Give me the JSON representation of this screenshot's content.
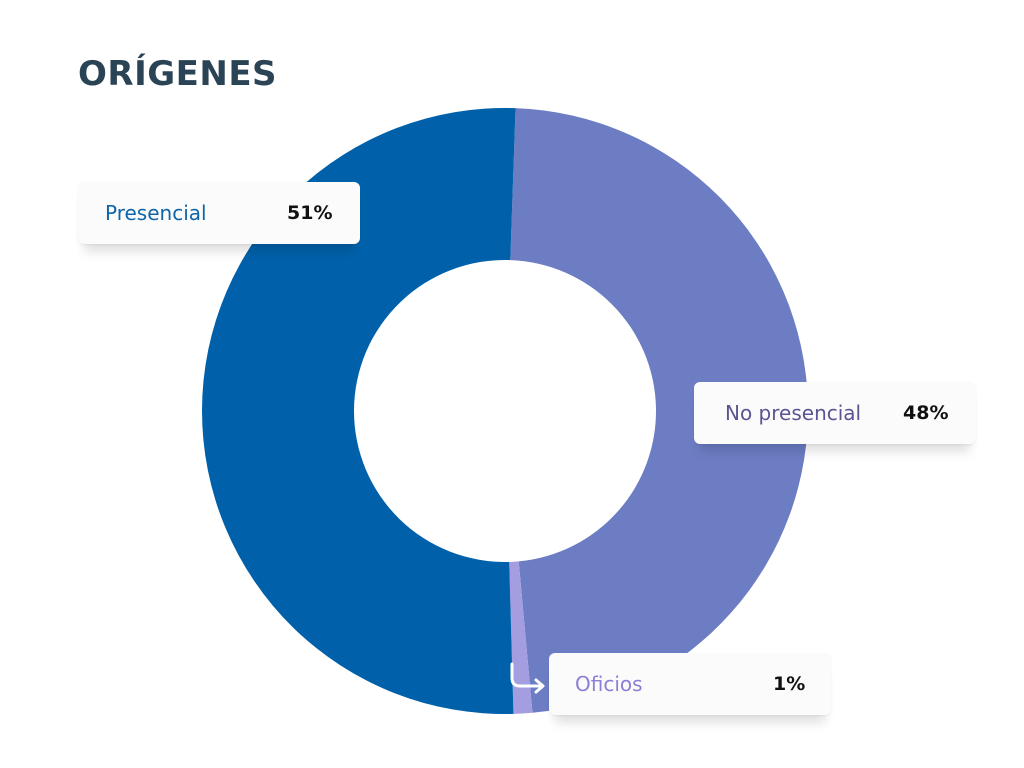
{
  "title": "ORÍGENES",
  "colors": {
    "title": "#2b4455",
    "background": "#ffffff"
  },
  "chart_data": {
    "type": "pie",
    "variant": "donut",
    "title": "ORÍGENES",
    "slices": [
      {
        "label": "Presencial",
        "value": 51,
        "value_label": "51%",
        "color": "#0061aa",
        "label_color": "#0e65a8"
      },
      {
        "label": "No presencial",
        "value": 48,
        "value_label": "48%",
        "color": "#6c7dc4",
        "label_color": "#5a5591"
      },
      {
        "label": "Oficios",
        "value": 1,
        "value_label": "1%",
        "color": "#a49ee0",
        "label_color": "#8c7fd6"
      }
    ],
    "legend": "callout-labels"
  }
}
